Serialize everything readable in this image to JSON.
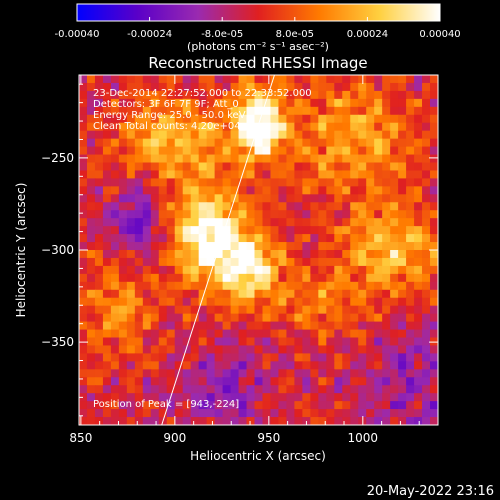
{
  "colorbar": {
    "tick_labels": [
      "-0.00040",
      "-0.00024",
      "-8.0e-05",
      "8.0e-05",
      "0.00024",
      "0.00040"
    ],
    "tick_values": [
      -0.0004,
      -0.00024,
      -8e-05,
      8e-05,
      0.00024,
      0.0004
    ],
    "range": [
      -0.0004,
      0.0004
    ],
    "unit_label": "(photons cm⁻² s⁻¹ asec⁻²)",
    "stops": [
      "#0000ff",
      "#5a00c8",
      "#9a2ab0",
      "#e02020",
      "#ff7a00",
      "#ffd040",
      "#ffffff"
    ]
  },
  "chart_data": {
    "type": "heatmap",
    "title": "Reconstructed RHESSI Image",
    "xlabel": "Heliocentric X (arcsec)",
    "ylabel": "Heliocentric Y (arcsec)",
    "xlim": [
      849,
      1040
    ],
    "ylim": [
      -395,
      -205
    ],
    "x_ticks": [
      850,
      900,
      950,
      1000
    ],
    "y_ticks": [
      -350,
      -300,
      -250
    ],
    "x_tick_labels": [
      "850",
      "900",
      "950",
      "1000"
    ],
    "y_tick_labels": [
      "−350",
      "−300",
      "−250"
    ],
    "annotations": [
      "23-Dec-2014 22:27:52.000 to 22:33:52.000",
      "Detectors: 3F 6F 7F 9F; Att_0",
      "Energy Range: 25.0 - 50.0 keV",
      "Clean   Total counts: 4.20e+04"
    ],
    "peak_label": "Position of Peak = [943,-224]",
    "peak_position": [
      943,
      -224
    ],
    "limb_line": [
      [
        893,
        -395
      ],
      [
        953,
        -205
      ]
    ],
    "blobs": [
      {
        "x": 918,
        "y": -292,
        "amp": 0.00042,
        "sx": 14,
        "sy": 18
      },
      {
        "x": 940,
        "y": -310,
        "amp": 0.00034,
        "sx": 12,
        "sy": 14
      },
      {
        "x": 945,
        "y": -232,
        "amp": 0.00046,
        "sx": 10,
        "sy": 14
      },
      {
        "x": 900,
        "y": -240,
        "amp": 0.00026,
        "sx": 20,
        "sy": 16
      },
      {
        "x": 995,
        "y": -240,
        "amp": 0.00022,
        "sx": 22,
        "sy": 22
      },
      {
        "x": 1015,
        "y": -300,
        "amp": 0.00026,
        "sx": 18,
        "sy": 16
      },
      {
        "x": 870,
        "y": -330,
        "amp": 0.00018,
        "sx": 14,
        "sy": 20
      },
      {
        "x": 980,
        "y": -330,
        "amp": 0.00016,
        "sx": 16,
        "sy": 12
      },
      {
        "x": 880,
        "y": -285,
        "amp": -0.00018,
        "sx": 10,
        "sy": 16
      },
      {
        "x": 925,
        "y": -375,
        "amp": -0.00015,
        "sx": 16,
        "sy": 14
      },
      {
        "x": 1025,
        "y": -370,
        "amp": -0.00012,
        "sx": 18,
        "sy": 20
      }
    ]
  },
  "footer": {
    "timestamp": "20-May-2022 23:16"
  }
}
